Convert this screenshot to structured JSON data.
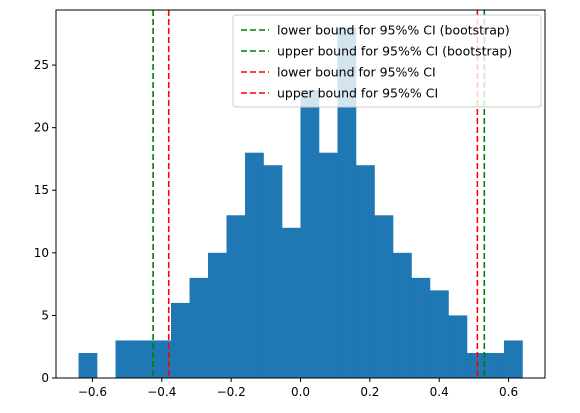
{
  "chart_data": {
    "type": "histogram",
    "bins": [
      {
        "x0": -0.64,
        "x1": -0.5867,
        "count": 2
      },
      {
        "x0": -0.5867,
        "x1": -0.5333,
        "count": 0
      },
      {
        "x0": -0.5333,
        "x1": -0.48,
        "count": 3
      },
      {
        "x0": -0.48,
        "x1": -0.4267,
        "count": 3
      },
      {
        "x0": -0.4267,
        "x1": -0.3733,
        "count": 3
      },
      {
        "x0": -0.3733,
        "x1": -0.32,
        "count": 6
      },
      {
        "x0": -0.32,
        "x1": -0.2667,
        "count": 8
      },
      {
        "x0": -0.2667,
        "x1": -0.2133,
        "count": 10
      },
      {
        "x0": -0.2133,
        "x1": -0.16,
        "count": 13
      },
      {
        "x0": -0.16,
        "x1": -0.1067,
        "count": 18
      },
      {
        "x0": -0.1067,
        "x1": -0.0533,
        "count": 17
      },
      {
        "x0": -0.0533,
        "x1": 0.0,
        "count": 12
      },
      {
        "x0": 0.0,
        "x1": 0.0533,
        "count": 23
      },
      {
        "x0": 0.0533,
        "x1": 0.1067,
        "count": 18
      },
      {
        "x0": 0.1067,
        "x1": 0.16,
        "count": 28
      },
      {
        "x0": 0.16,
        "x1": 0.2133,
        "count": 17
      },
      {
        "x0": 0.2133,
        "x1": 0.2667,
        "count": 13
      },
      {
        "x0": 0.2667,
        "x1": 0.32,
        "count": 10
      },
      {
        "x0": 0.32,
        "x1": 0.3733,
        "count": 8
      },
      {
        "x0": 0.3733,
        "x1": 0.4267,
        "count": 7
      },
      {
        "x0": 0.4267,
        "x1": 0.48,
        "count": 5
      },
      {
        "x0": 0.48,
        "x1": 0.5333,
        "count": 2
      },
      {
        "x0": 0.5333,
        "x1": 0.5867,
        "count": 2
      },
      {
        "x0": 0.5867,
        "x1": 0.64,
        "count": 3
      }
    ],
    "bar_color": "#1f77b4",
    "vlines": [
      {
        "label": "lower bound for 95%% CI (bootstrap)",
        "x": -0.425,
        "color": "#008000"
      },
      {
        "label": "upper bound for 95%% CI (bootstrap)",
        "x": 0.53,
        "color": "#008000"
      },
      {
        "label": "lower bound for 95%% CI",
        "x": -0.38,
        "color": "#ff0000"
      },
      {
        "label": "upper bound for 95%% CI",
        "x": 0.51,
        "color": "#ff0000"
      }
    ],
    "xlim": [
      -0.705,
      0.705
    ],
    "ylim": [
      0,
      29.4
    ],
    "xticks": [
      -0.6,
      -0.4,
      -0.2,
      0.0,
      0.2,
      0.4,
      0.6
    ],
    "xtick_labels": [
      "−0.6",
      "−0.4",
      "−0.2",
      "0.0",
      "0.2",
      "0.4",
      "0.6"
    ],
    "yticks": [
      0,
      5,
      10,
      15,
      20,
      25
    ],
    "ytick_labels": [
      "0",
      "5",
      "10",
      "15",
      "20",
      "25"
    ],
    "legend_position": "top-right",
    "grid": false
  }
}
